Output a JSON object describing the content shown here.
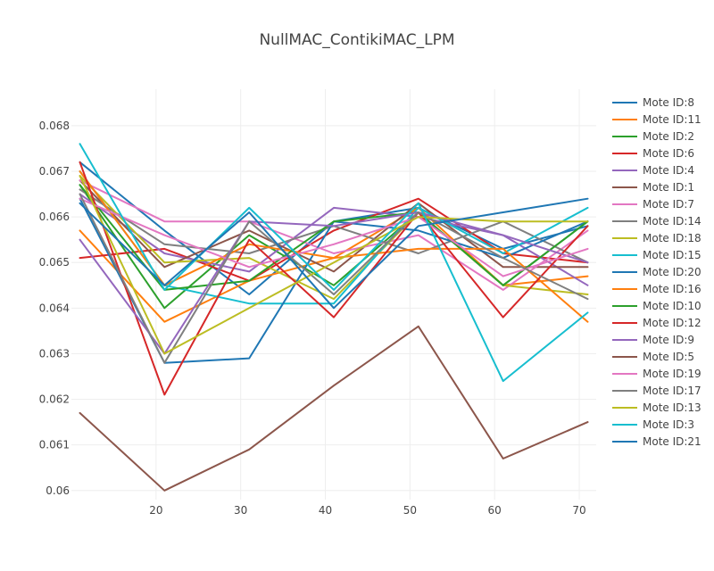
{
  "chart_data": {
    "type": "line",
    "title": "NullMAC_ContikiMAC_LPM",
    "xlabel": "",
    "ylabel": "",
    "xlim": [
      10,
      72
    ],
    "ylim": [
      0.0598,
      0.0688
    ],
    "x_ticks": [
      20,
      30,
      40,
      50,
      60,
      70
    ],
    "y_ticks": [
      0.06,
      0.061,
      0.062,
      0.063,
      0.064,
      0.065,
      0.066,
      0.067,
      0.068
    ],
    "y_tick_labels": [
      "0.06",
      "0.061",
      "0.062",
      "0.063",
      "0.064",
      "0.065",
      "0.066",
      "0.067",
      "0.068"
    ],
    "grid": true,
    "legend_position": "right",
    "x": [
      11,
      21,
      31,
      41,
      51,
      61,
      71
    ],
    "series": [
      {
        "name": "Mote ID:8",
        "color": "#1f77b4",
        "values": [
          0.0672,
          0.0657,
          0.0643,
          0.0659,
          0.0662,
          0.0653,
          0.0658
        ]
      },
      {
        "name": "Mote ID:11",
        "color": "#ff7f0e",
        "values": [
          0.0657,
          0.0637,
          0.0646,
          0.0651,
          0.0662,
          0.0645,
          0.0647
        ]
      },
      {
        "name": "Mote ID:2",
        "color": "#2ca02c",
        "values": [
          0.0667,
          0.064,
          0.0656,
          0.0645,
          0.0661,
          0.0645,
          0.0659
        ]
      },
      {
        "name": "Mote ID:6",
        "color": "#d62728",
        "values": [
          0.0651,
          0.0653,
          0.0646,
          0.0657,
          0.0664,
          0.0652,
          0.065
        ]
      },
      {
        "name": "Mote ID:4",
        "color": "#9467bd",
        "values": [
          0.0665,
          0.0652,
          0.0648,
          0.0662,
          0.066,
          0.0656,
          0.0645
        ]
      },
      {
        "name": "Mote ID:1",
        "color": "#8c564b",
        "values": [
          0.0668,
          0.0649,
          0.0657,
          0.0648,
          0.0663,
          0.0649,
          0.0649
        ]
      },
      {
        "name": "Mote ID:7",
        "color": "#e377c2",
        "values": [
          0.0668,
          0.0659,
          0.0659,
          0.0652,
          0.0656,
          0.0644,
          0.0657
        ]
      },
      {
        "name": "Mote ID:14",
        "color": "#7f7f7f",
        "values": [
          0.0666,
          0.0654,
          0.0652,
          0.0658,
          0.0652,
          0.0659,
          0.065
        ]
      },
      {
        "name": "Mote ID:18",
        "color": "#bcbd22",
        "values": [
          0.0669,
          0.065,
          0.0651,
          0.0642,
          0.0661,
          0.0645,
          0.0643
        ]
      },
      {
        "name": "Mote ID:15",
        "color": "#17becf",
        "values": [
          0.067,
          0.0645,
          0.0641,
          0.0641,
          0.0662,
          0.0652,
          0.0662
        ]
      },
      {
        "name": "Mote ID:20",
        "color": "#1f77b4",
        "values": [
          0.0664,
          0.0628,
          0.0629,
          0.0659,
          0.0657,
          0.0651,
          0.0659
        ]
      },
      {
        "name": "Mote ID:16",
        "color": "#ff7f0e",
        "values": [
          0.067,
          0.0645,
          0.0654,
          0.0651,
          0.0653,
          0.0653,
          0.0637
        ]
      },
      {
        "name": "Mote ID:10",
        "color": "#2ca02c",
        "values": [
          0.0667,
          0.0644,
          0.0646,
          0.0659,
          0.0661,
          0.0645,
          0.0659
        ]
      },
      {
        "name": "Mote ID:12",
        "color": "#d62728",
        "values": [
          0.0672,
          0.0621,
          0.0655,
          0.0638,
          0.0661,
          0.0638,
          0.0658
        ]
      },
      {
        "name": "Mote ID:9",
        "color": "#9467bd",
        "values": [
          0.0655,
          0.063,
          0.0659,
          0.0658,
          0.0661,
          0.0656,
          0.065
        ]
      },
      {
        "name": "Mote ID:5",
        "color": "#8c564b",
        "values": [
          0.0617,
          0.06,
          0.0609,
          0.0623,
          0.0636,
          0.0607,
          0.0615
        ]
      },
      {
        "name": "Mote ID:19",
        "color": "#e377c2",
        "values": [
          0.0664,
          0.0656,
          0.0649,
          0.0654,
          0.066,
          0.0647,
          0.0653
        ]
      },
      {
        "name": "Mote ID:17",
        "color": "#7f7f7f",
        "values": [
          0.0665,
          0.0628,
          0.0659,
          0.0643,
          0.0661,
          0.0651,
          0.0642
        ]
      },
      {
        "name": "Mote ID:13",
        "color": "#bcbd22",
        "values": [
          0.0669,
          0.063,
          0.064,
          0.065,
          0.066,
          0.0659,
          0.0659
        ]
      },
      {
        "name": "Mote ID:3",
        "color": "#17becf",
        "values": [
          0.0676,
          0.0644,
          0.0662,
          0.0644,
          0.0663,
          0.0624,
          0.0639
        ]
      },
      {
        "name": "Mote ID:21",
        "color": "#1f77b4",
        "values": [
          0.0663,
          0.0645,
          0.0661,
          0.064,
          0.0658,
          0.0661,
          0.0664
        ]
      }
    ]
  }
}
